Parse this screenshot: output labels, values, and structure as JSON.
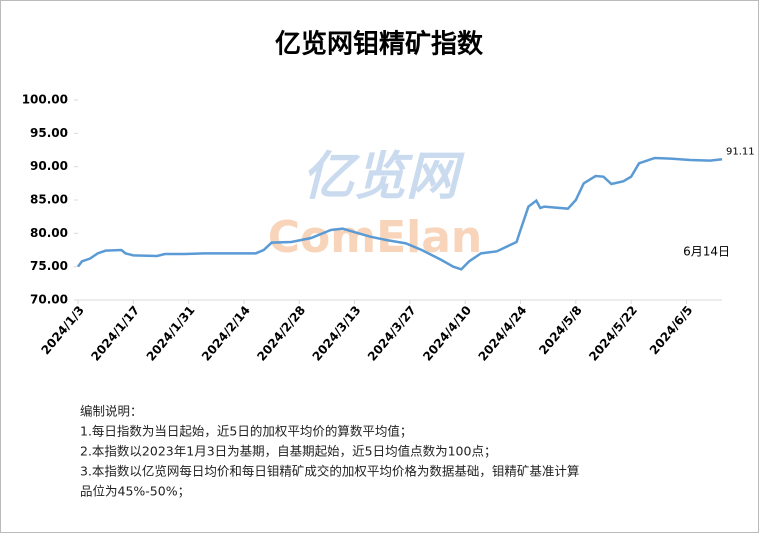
{
  "chart_data": {
    "type": "line",
    "title": "亿览网钼精矿指数",
    "x": [
      "2024/1/3",
      "2024/1/4",
      "2024/1/6",
      "2024/1/8",
      "2024/1/10",
      "2024/1/14",
      "2024/1/15",
      "2024/1/17",
      "2024/1/23",
      "2024/1/25",
      "2024/1/30",
      "2024/2/4",
      "2024/2/17",
      "2024/2/19",
      "2024/2/21",
      "2024/2/26",
      "2024/3/2",
      "2024/3/7",
      "2024/3/10",
      "2024/3/14",
      "2024/3/17",
      "2024/3/21",
      "2024/3/26",
      "2024/3/30",
      "2024/4/4",
      "2024/4/7",
      "2024/4/9",
      "2024/4/11",
      "2024/4/14",
      "2024/4/18",
      "2024/4/23",
      "2024/4/24",
      "2024/4/26",
      "2024/4/28",
      "2024/4/29",
      "2024/4/30",
      "2024/5/6",
      "2024/5/8",
      "2024/5/10",
      "2024/5/13",
      "2024/5/15",
      "2024/5/17",
      "2024/5/20",
      "2024/5/22",
      "2024/5/24",
      "2024/5/28",
      "2024/6/1",
      "2024/6/6",
      "2024/6/11",
      "2024/6/14"
    ],
    "values": [
      75.0,
      75.8,
      76.2,
      77.0,
      77.4,
      77.5,
      77.0,
      76.7,
      76.6,
      76.9,
      76.9,
      77.0,
      77.0,
      77.5,
      78.6,
      78.7,
      79.3,
      80.5,
      80.7,
      80.0,
      79.5,
      79.0,
      78.5,
      77.5,
      76.0,
      75.0,
      74.6,
      75.8,
      77.0,
      77.3,
      78.7,
      80.5,
      84.0,
      84.9,
      83.8,
      84.0,
      83.7,
      85.0,
      87.5,
      88.6,
      88.5,
      87.4,
      87.8,
      88.5,
      90.5,
      91.3,
      91.2,
      91.0,
      90.9,
      91.11
    ],
    "color": "#5b9bd5",
    "xlim": [
      "2024/1/3",
      "2024/6/14"
    ],
    "xticks": [
      "2024/1/3",
      "2024/1/17",
      "2024/1/31",
      "2024/2/14",
      "2024/2/28",
      "2024/3/13",
      "2024/3/27",
      "2024/4/10",
      "2024/4/24",
      "2024/5/8",
      "2024/5/22",
      "2024/6/5"
    ],
    "ylim": [
      70,
      100
    ],
    "yticks": [
      {
        "value": 70,
        "label": "70.00"
      },
      {
        "value": 75,
        "label": "75.00"
      },
      {
        "value": 80,
        "label": "80.00"
      },
      {
        "value": 85,
        "label": "85.00"
      },
      {
        "value": 90,
        "label": "90.00"
      },
      {
        "value": 95,
        "label": "95.00"
      },
      {
        "value": 100,
        "label": "100.00"
      }
    ],
    "annotation": "6月14日",
    "watermark": [
      "亿览网",
      "ComElan"
    ],
    "notes": [
      "编制说明：",
      "1.每日指数为当日起始，近5日的加权平均价的算数平均值；",
      "2.本指数以2023年1月3日为基期，自基期起始，近5日均值点数为100点；",
      "3.本指数以亿览网每日均价和每日钼精矿成交的加权平均价格为数据基础，钼精矿基准计算",
      "品位为45%-50%；"
    ]
  }
}
